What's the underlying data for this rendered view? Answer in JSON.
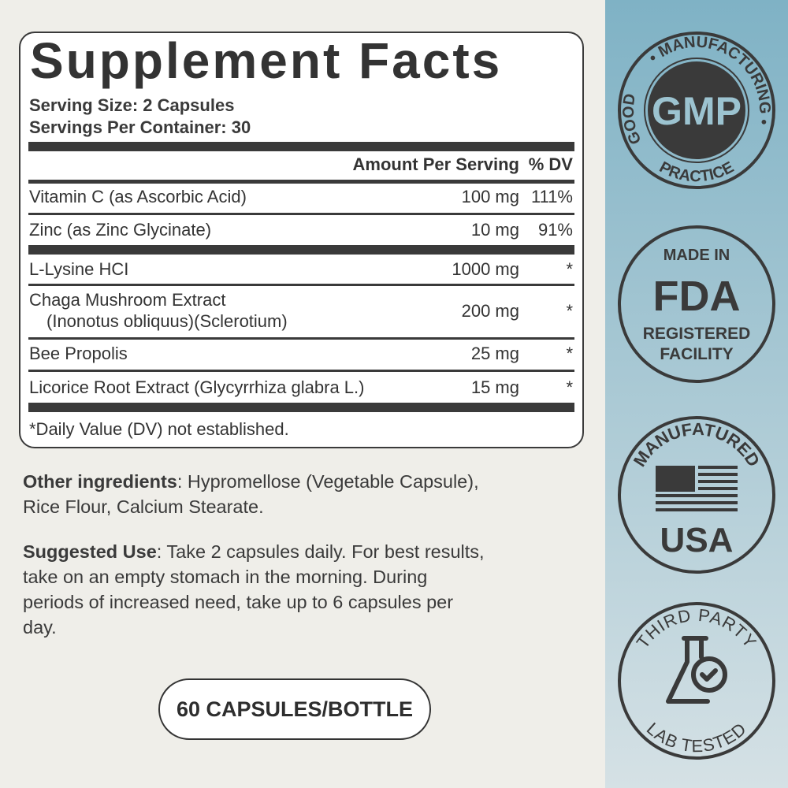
{
  "facts": {
    "title": "Supplement Facts",
    "serving_size": "Serving Size: 2 Capsules",
    "servings_per_container": "Servings Per Container: 30",
    "header_amount": "Amount Per Serving",
    "header_dv": "% DV",
    "rows": [
      {
        "name": "Vitamin C (as Ascorbic Acid)",
        "amount": "100 mg",
        "dv": "111%"
      },
      {
        "name": "Zinc (as Zinc Glycinate)",
        "amount": "10 mg",
        "dv": "91%"
      },
      {
        "name": "L-Lysine HCI",
        "amount": "1000 mg",
        "dv": "*"
      },
      {
        "name": "Chaga Mushroom Extract",
        "name2": "(Inonotus obliquus)(Sclerotium)",
        "amount": "200 mg",
        "dv": "*"
      },
      {
        "name": "Bee Propolis",
        "amount": "25 mg",
        "dv": "*"
      },
      {
        "name": "Licorice Root Extract (Glycyrrhiza glabra L.)",
        "amount": "15 mg",
        "dv": "*"
      }
    ],
    "footnote": "*Daily Value (DV) not established."
  },
  "other_ingredients": {
    "label": "Other ingredients",
    "text": ": Hypromellose (Vegetable Capsule),",
    "text2": "Rice Flour, Calcium Stearate."
  },
  "suggested_use": {
    "label": "Suggested Use",
    "lines": [
      ": Take 2 capsules daily. For best results,",
      "take on an empty stomach in the morning. During",
      "periods of increased need, take up to 6 capsules per",
      "day."
    ]
  },
  "count_button": "60 CAPSULES/BOTTLE",
  "badges": {
    "gmp": {
      "top": "• MANUFACTURING •",
      "left": "GOOD",
      "bottom": "PRACTICE",
      "center": "GMP"
    },
    "fda": {
      "line1": "MADE IN",
      "line2": "FDA",
      "line3": "REGISTERED",
      "line4": "FACILITY"
    },
    "usa": {
      "top": "MANUFATURED",
      "bottom": "USA",
      "icon": "us-flag-icon"
    },
    "lab": {
      "top": "THIRD PARTY",
      "bottom": "LAB TESTED",
      "icon": "flask-check-icon"
    }
  },
  "colors": {
    "ink": "#333333",
    "background": "#efeee9",
    "strip_top": "#7fb2c5",
    "strip_bottom": "#d5e1e5"
  }
}
